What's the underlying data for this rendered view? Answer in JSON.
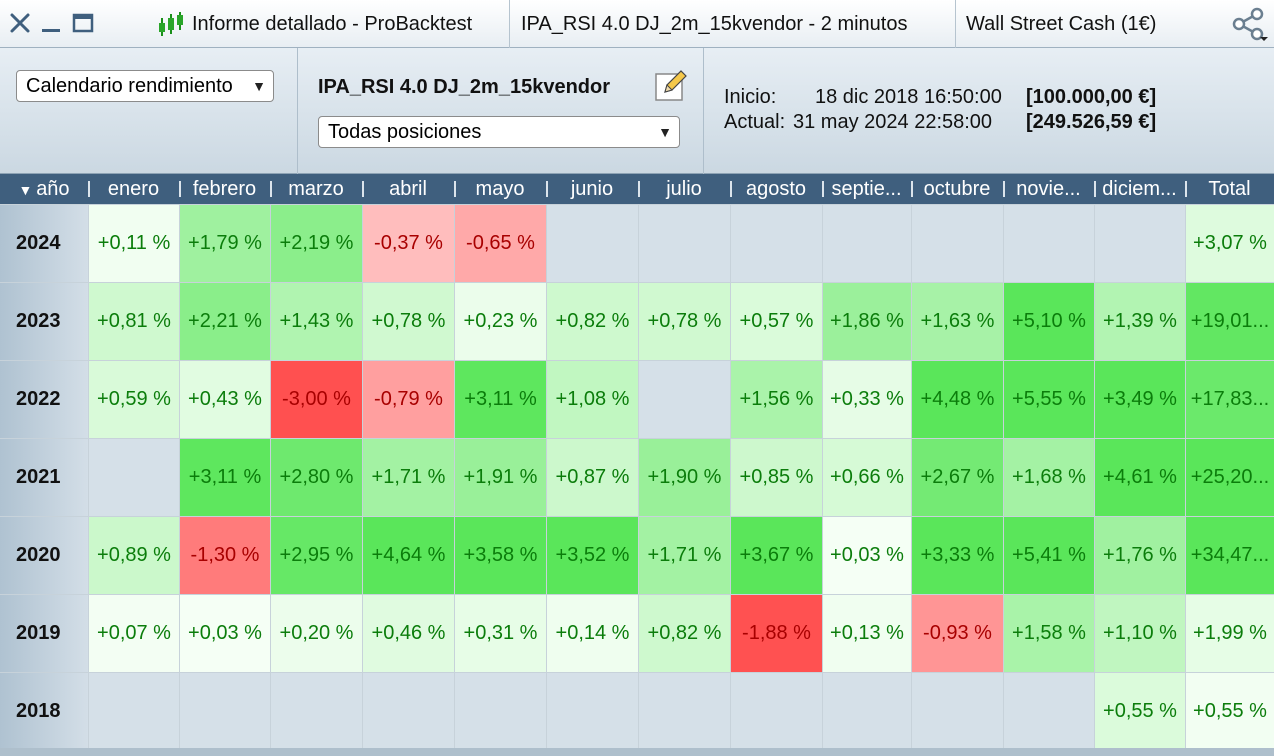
{
  "titlebar": {
    "tabs": [
      {
        "label": "Informe detallado - ProBacktest"
      },
      {
        "label": "IPA_RSI 4.0 DJ_2m_15kvendor - 2 minutos"
      },
      {
        "label": "Wall Street Cash (1€)"
      }
    ],
    "icons": [
      "close-icon",
      "minimize-icon",
      "maximize-icon",
      "candlestick-icon",
      "share-icon"
    ]
  },
  "toolbar": {
    "view_select": "Calendario rendimiento",
    "strategy_name": "IPA_RSI 4.0 DJ_2m_15kvendor",
    "positions_select": "Todas posiciones",
    "start_label": "Inicio:",
    "start_date": "18 dic 2018 16:50:00",
    "start_value": "[100.000,00 €]",
    "current_label": "Actual:",
    "current_date": "31 may 2024 22:58:00",
    "current_value": "[249.526,59 €]"
  },
  "table": {
    "columns": [
      "año",
      "enero",
      "febrero",
      "marzo",
      "abril",
      "mayo",
      "junio",
      "julio",
      "agosto",
      "septie...",
      "octubre",
      "novie...",
      "diciem...",
      "Total"
    ],
    "rows": [
      {
        "year": "2024",
        "cells": [
          "+0,11 %",
          "+1,79 %",
          "+2,19 %",
          "-0,37 %",
          "-0,65 %",
          "",
          "",
          "",
          "",
          "",
          "",
          "",
          "+3,07 %"
        ]
      },
      {
        "year": "2023",
        "cells": [
          "+0,81 %",
          "+2,21 %",
          "+1,43 %",
          "+0,78 %",
          "+0,23 %",
          "+0,82 %",
          "+0,78 %",
          "+0,57 %",
          "+1,86 %",
          "+1,63 %",
          "+5,10 %",
          "+1,39 %",
          "+19,01..."
        ]
      },
      {
        "year": "2022",
        "cells": [
          "+0,59 %",
          "+0,43 %",
          "-3,00 %",
          "-0,79 %",
          "+3,11 %",
          "+1,08 %",
          "",
          "+1,56 %",
          "+0,33 %",
          "+4,48 %",
          "+5,55 %",
          "+3,49 %",
          "+17,83..."
        ]
      },
      {
        "year": "2021",
        "cells": [
          "",
          "+3,11 %",
          "+2,80 %",
          "+1,71 %",
          "+1,91 %",
          "+0,87 %",
          "+1,90 %",
          "+0,85 %",
          "+0,66 %",
          "+2,67 %",
          "+1,68 %",
          "+4,61 %",
          "+25,20..."
        ]
      },
      {
        "year": "2020",
        "cells": [
          "+0,89 %",
          "-1,30 %",
          "+2,95 %",
          "+4,64 %",
          "+3,58 %",
          "+3,52 %",
          "+1,71 %",
          "+3,67 %",
          "+0,03 %",
          "+3,33 %",
          "+5,41 %",
          "+1,76 %",
          "+34,47..."
        ]
      },
      {
        "year": "2019",
        "cells": [
          "+0,07 %",
          "+0,03 %",
          "+0,20 %",
          "+0,46 %",
          "+0,31 %",
          "+0,14 %",
          "+0,82 %",
          "-1,88 %",
          "+0,13 %",
          "-0,93 %",
          "+1,58 %",
          "+1,10 %",
          "+1,99 %"
        ]
      },
      {
        "year": "2018",
        "cells": [
          "",
          "",
          "",
          "",
          "",
          "",
          "",
          "",
          "",
          "",
          "",
          "+0,55 %",
          "+0,55 %"
        ]
      }
    ]
  },
  "colors": {
    "empty_cell": "#d5e0e8",
    "positive_text": "#0b7d0b",
    "negative_text": "#a80000",
    "header_bg": "#3f5f7e"
  }
}
